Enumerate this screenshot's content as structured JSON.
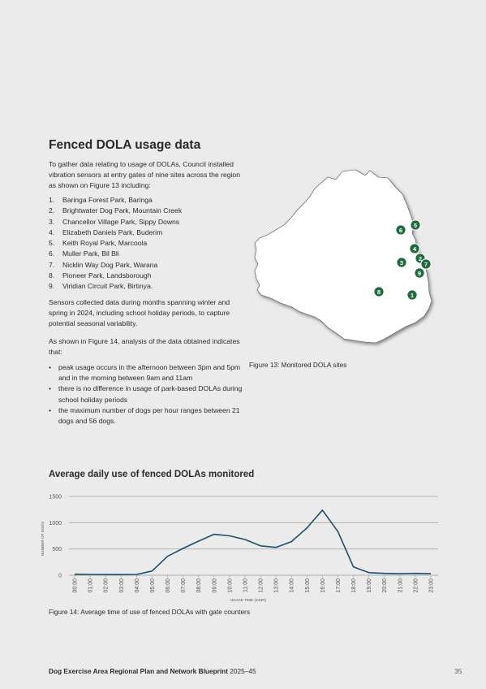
{
  "section_title": "Fenced DOLA usage data",
  "intro": "To gather data relating to usage of DOLAs, Council installed vibration sensors at entry gates of nine sites across the region as shown on Figure 13 including:",
  "parks": [
    {
      "num": "1.",
      "name": "Baringa Forest Park, Baringa"
    },
    {
      "num": "2.",
      "name": "Brightwater Dog Park, Mountain Creek"
    },
    {
      "num": "3.",
      "name": "Chancellor Village Park, Sippy Downs"
    },
    {
      "num": "4.",
      "name": "Elizabeth Daniels Park, Buderim"
    },
    {
      "num": "5.",
      "name": "Keith Royal Park, Marcoola"
    },
    {
      "num": "6.",
      "name": "Muller Park, Bil Bli"
    },
    {
      "num": "7.",
      "name": "Nicklin Way Dog Park, Warana"
    },
    {
      "num": "8.",
      "name": "Pioneer Park, Landsborough"
    },
    {
      "num": "9.",
      "name": "Viridian Circuit Park, Birtinya."
    }
  ],
  "sensors_paragraph": "Sensors collected data during months spanning winter and spring in 2024, including school holiday periods, to capture potential seasonal variability.",
  "analysis_paragraph": "As shown in Figure 14, analysis of the data obtained indicates that:",
  "findings": [
    "peak usage occurs in the afternoon between 3pm and 5pm and in the morning between 9am and 11am",
    "there is no difference in usage of park-based DOLAs during school holiday periods",
    "the maximum number of dogs per hour ranges between 21 dogs and 56 dogs."
  ],
  "map": {
    "caption": "Figure 13: Monitored DOLA sites",
    "marker_color": "#1e6b3c",
    "markers": [
      "1",
      "2",
      "3",
      "4",
      "5",
      "6",
      "7",
      "8",
      "9"
    ]
  },
  "chart_title": "Average daily use of fenced DOLAs monitored",
  "chart_data": {
    "type": "line",
    "title": "Average daily use of fenced DOLAs monitored",
    "xlabel": "USAGE TIME (24HR)",
    "ylabel": "NUMBER OF DOGS",
    "categories": [
      "00:00",
      "01:00",
      "02:00",
      "03:00",
      "04:00",
      "05:00",
      "06:00",
      "07:00",
      "08:00",
      "09:00",
      "10:00",
      "11:00",
      "12:00",
      "13:00",
      "14:00",
      "15:00",
      "16:00",
      "17:00",
      "18:00",
      "19:00",
      "20:00",
      "21:00",
      "22:00",
      "23:00"
    ],
    "series": [
      {
        "values": [
          20,
          15,
          12,
          12,
          15,
          80,
          360,
          510,
          650,
          780,
          750,
          680,
          560,
          530,
          640,
          900,
          1240,
          830,
          160,
          50,
          35,
          30,
          35,
          30
        ]
      }
    ],
    "ylim": [
      0,
      1500
    ],
    "yticks": [
      0,
      500,
      1000,
      1500
    ],
    "grid": true,
    "line_color": "#1d4e6b"
  },
  "fig14_caption": "Figure 14: Average time of use of fenced DOLAs with gate counters",
  "footer": {
    "title_bold": "Dog Exercise Area Regional Plan and Network Blueprint",
    "title_rest": " 2025–45",
    "page_number": "35"
  }
}
